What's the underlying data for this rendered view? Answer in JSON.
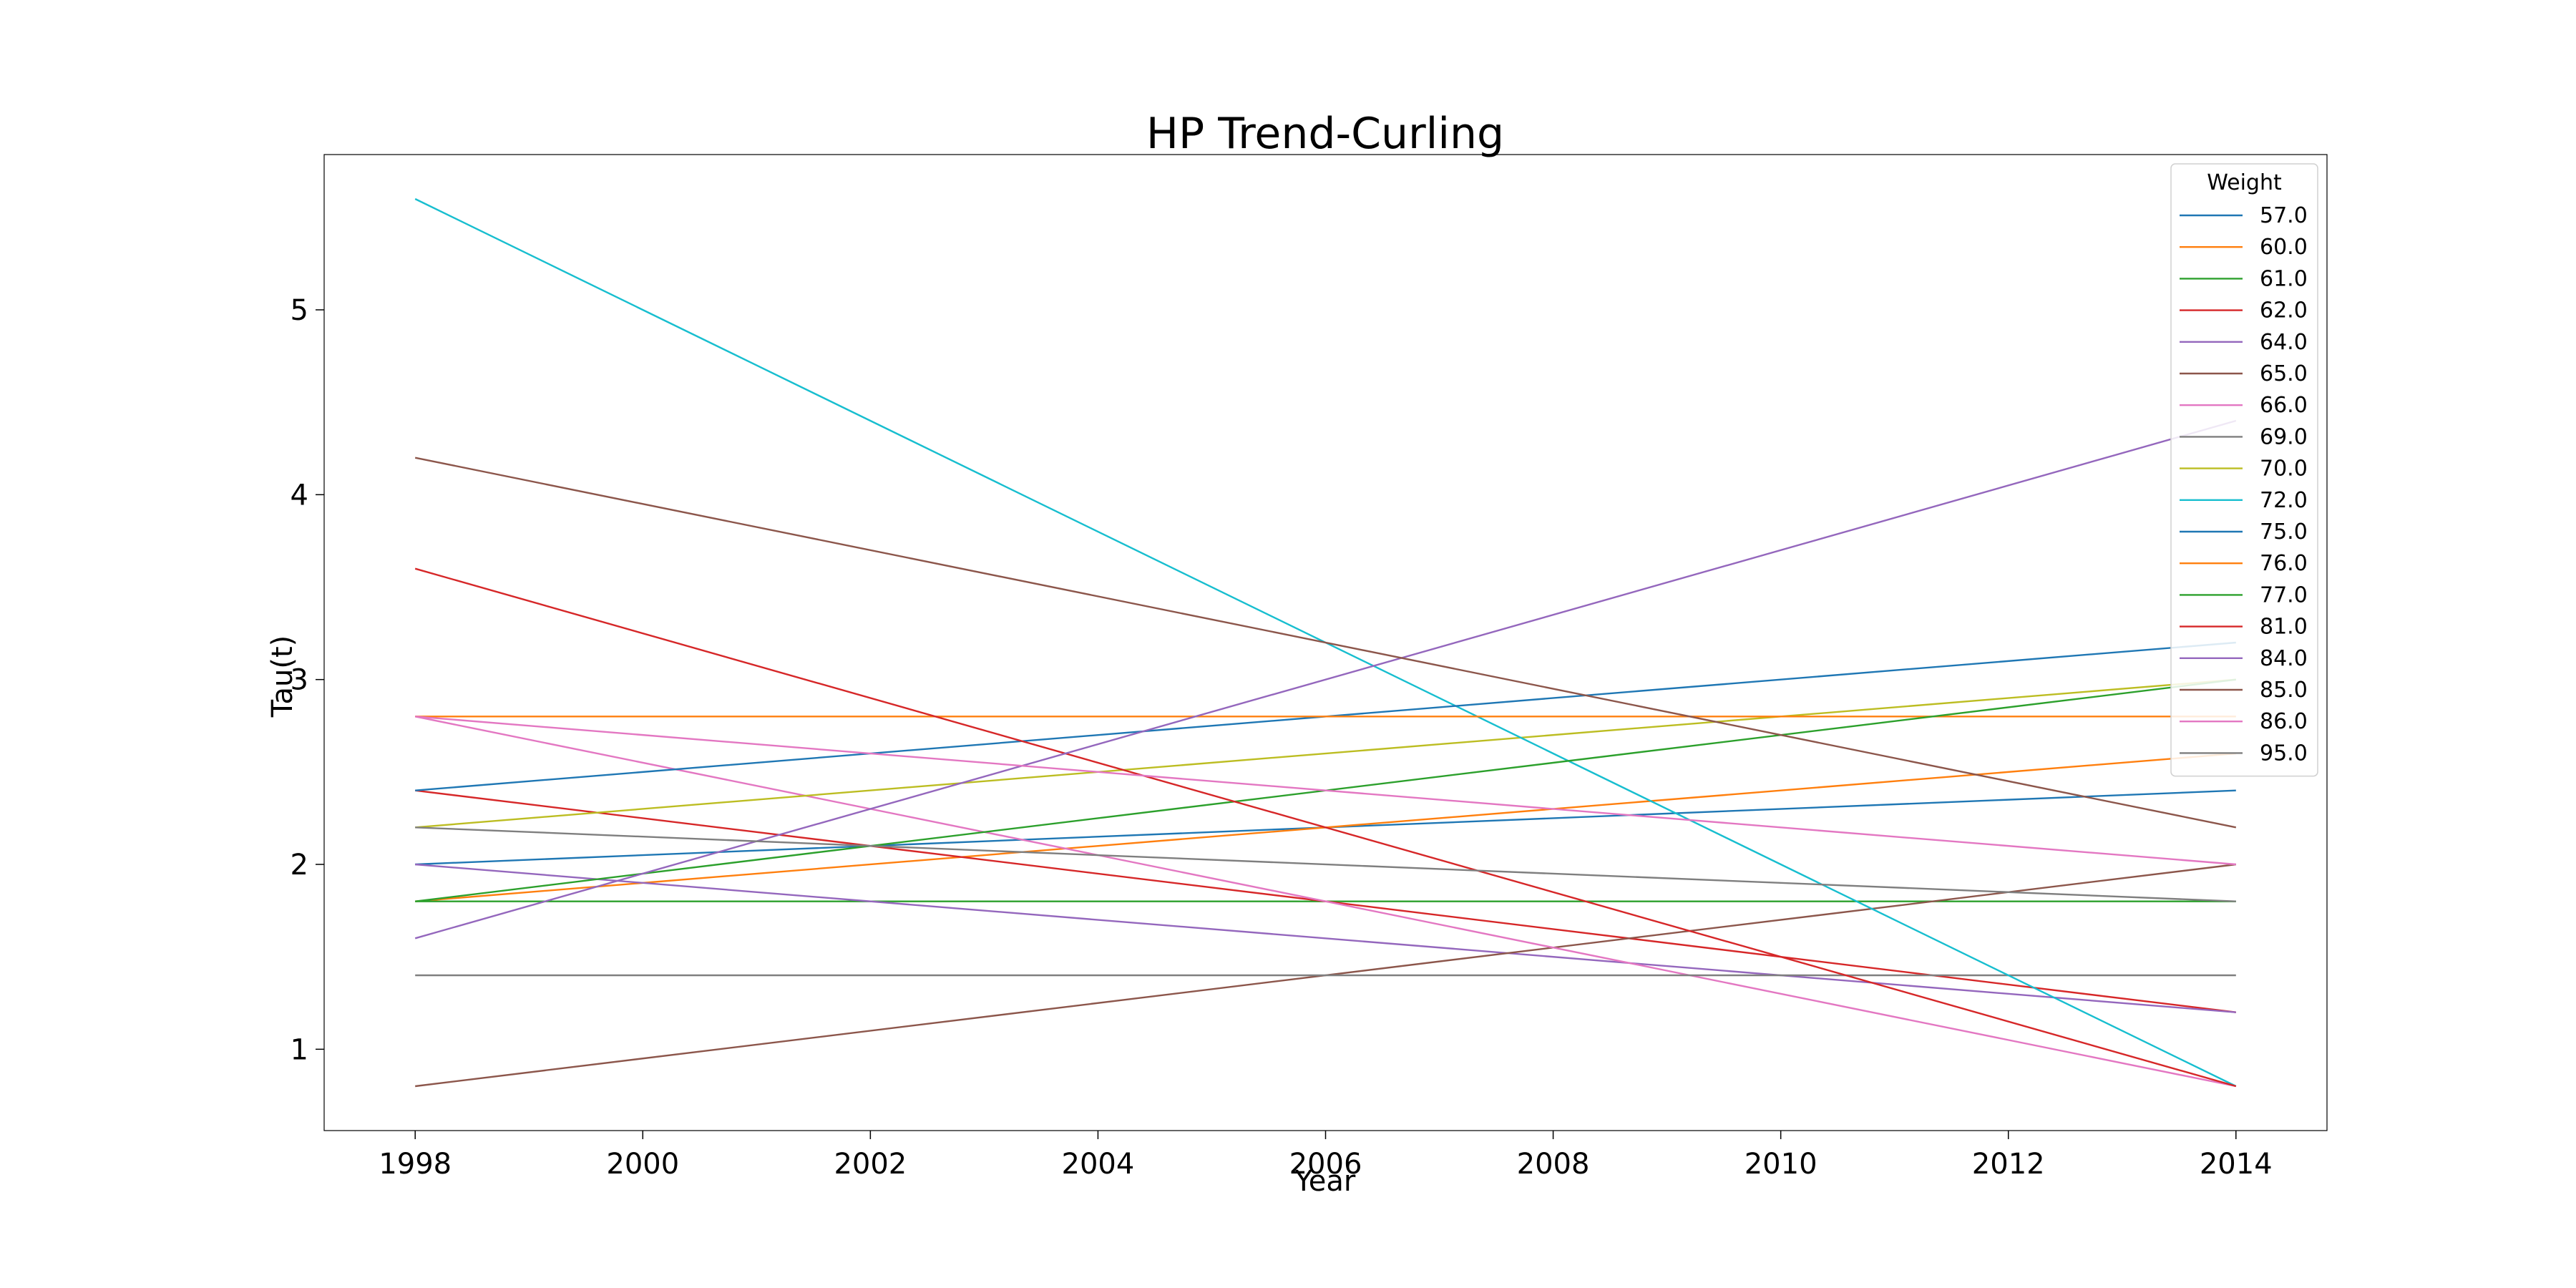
{
  "chart_data": {
    "type": "line",
    "title": "HP Trend-Curling",
    "xlabel": "Year",
    "ylabel": "Tau(t)",
    "xlim": [
      1997.2,
      2014.8
    ],
    "ylim": [
      0.56,
      5.84
    ],
    "xticks": [
      1998,
      2000,
      2002,
      2004,
      2006,
      2008,
      2010,
      2012,
      2014
    ],
    "yticks": [
      1,
      2,
      3,
      4,
      5
    ],
    "grid": false,
    "legend": {
      "title": "Weight",
      "position": "top-right"
    },
    "x": [
      1998,
      2014
    ],
    "series": [
      {
        "name": "57.0",
        "color": "#1f77b4",
        "values": [
          2.0,
          2.4
        ]
      },
      {
        "name": "60.0",
        "color": "#ff7f0e",
        "values": [
          1.8,
          2.6
        ]
      },
      {
        "name": "61.0",
        "color": "#2ca02c",
        "values": [
          1.8,
          1.8
        ]
      },
      {
        "name": "62.0",
        "color": "#d62728",
        "values": [
          2.4,
          1.2
        ]
      },
      {
        "name": "64.0",
        "color": "#9467bd",
        "values": [
          2.0,
          1.2
        ]
      },
      {
        "name": "65.0",
        "color": "#8c564b",
        "values": [
          0.8,
          2.0
        ]
      },
      {
        "name": "66.0",
        "color": "#e377c2",
        "values": [
          2.8,
          0.8
        ]
      },
      {
        "name": "69.0",
        "color": "#7f7f7f",
        "values": [
          1.4,
          1.4
        ]
      },
      {
        "name": "70.0",
        "color": "#bcbd22",
        "values": [
          2.2,
          3.0
        ]
      },
      {
        "name": "72.0",
        "color": "#17becf",
        "values": [
          5.6,
          0.8
        ]
      },
      {
        "name": "75.0",
        "color": "#1f77b4",
        "values": [
          2.4,
          3.2
        ]
      },
      {
        "name": "76.0",
        "color": "#ff7f0e",
        "values": [
          2.8,
          2.8
        ]
      },
      {
        "name": "77.0",
        "color": "#2ca02c",
        "values": [
          1.8,
          3.0
        ]
      },
      {
        "name": "81.0",
        "color": "#d62728",
        "values": [
          3.6,
          0.8
        ]
      },
      {
        "name": "84.0",
        "color": "#9467bd",
        "values": [
          1.6,
          4.4
        ]
      },
      {
        "name": "85.0",
        "color": "#8c564b",
        "values": [
          4.2,
          2.2
        ]
      },
      {
        "name": "86.0",
        "color": "#e377c2",
        "values": [
          2.8,
          2.0
        ]
      },
      {
        "name": "95.0",
        "color": "#7f7f7f",
        "values": [
          2.2,
          1.8
        ]
      }
    ]
  }
}
